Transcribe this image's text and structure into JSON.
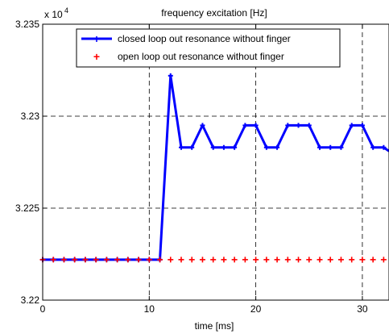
{
  "chart_data": {
    "type": "line",
    "title": "frequency excitation [Hz]",
    "xlabel": "time [ms]",
    "ylabel": "",
    "y_multiplier": "x 10",
    "y_multiplier_exp": "4",
    "xlim": [
      0,
      32.5
    ],
    "ylim": [
      3.22,
      3.235
    ],
    "xticks": [
      0,
      10,
      20,
      30
    ],
    "yticks": [
      3.22,
      3.225,
      3.23,
      3.235
    ],
    "xtick_labels": [
      "0",
      "10",
      "20",
      "30"
    ],
    "ytick_labels": [
      "3.22",
      "3.225",
      "3.23",
      "3.235"
    ],
    "grid": true,
    "legend_position": "top",
    "series": [
      {
        "name": "closed loop out resonance without finger",
        "color": "#0000ff",
        "style": "solid-line-with-markers",
        "x": [
          0,
          1,
          2,
          3,
          4,
          5,
          6,
          7,
          8,
          9,
          10,
          11,
          12,
          13,
          14,
          15,
          16,
          17,
          18,
          19,
          20,
          21,
          22,
          23,
          24,
          25,
          26,
          27,
          28,
          29,
          30,
          31,
          32,
          32.5
        ],
        "y": [
          3.2222,
          3.2222,
          3.2222,
          3.2222,
          3.2222,
          3.2222,
          3.2222,
          3.2222,
          3.2222,
          3.2222,
          3.2222,
          3.2222,
          3.2322,
          3.2283,
          3.2283,
          3.2295,
          3.2283,
          3.2283,
          3.2283,
          3.2295,
          3.2295,
          3.2283,
          3.2283,
          3.2295,
          3.2295,
          3.2295,
          3.2283,
          3.2283,
          3.2283,
          3.2295,
          3.2295,
          3.2283,
          3.2283,
          3.2281
        ]
      },
      {
        "name": "open loop out resonance without finger",
        "color": "#ff0000",
        "style": "markers-only",
        "x": [
          0,
          1,
          2,
          3,
          4,
          5,
          6,
          7,
          8,
          9,
          10,
          11,
          12,
          13,
          14,
          15,
          16,
          17,
          18,
          19,
          20,
          21,
          22,
          23,
          24,
          25,
          26,
          27,
          28,
          29,
          30,
          31,
          32
        ],
        "y": [
          3.2222,
          3.2222,
          3.2222,
          3.2222,
          3.2222,
          3.2222,
          3.2222,
          3.2222,
          3.2222,
          3.2222,
          3.2222,
          3.2222,
          3.2222,
          3.2222,
          3.2222,
          3.2222,
          3.2222,
          3.2222,
          3.2222,
          3.2222,
          3.2222,
          3.2222,
          3.2222,
          3.2222,
          3.2222,
          3.2222,
          3.2222,
          3.2222,
          3.2222,
          3.2222,
          3.2222,
          3.2222,
          3.2222
        ]
      }
    ]
  }
}
